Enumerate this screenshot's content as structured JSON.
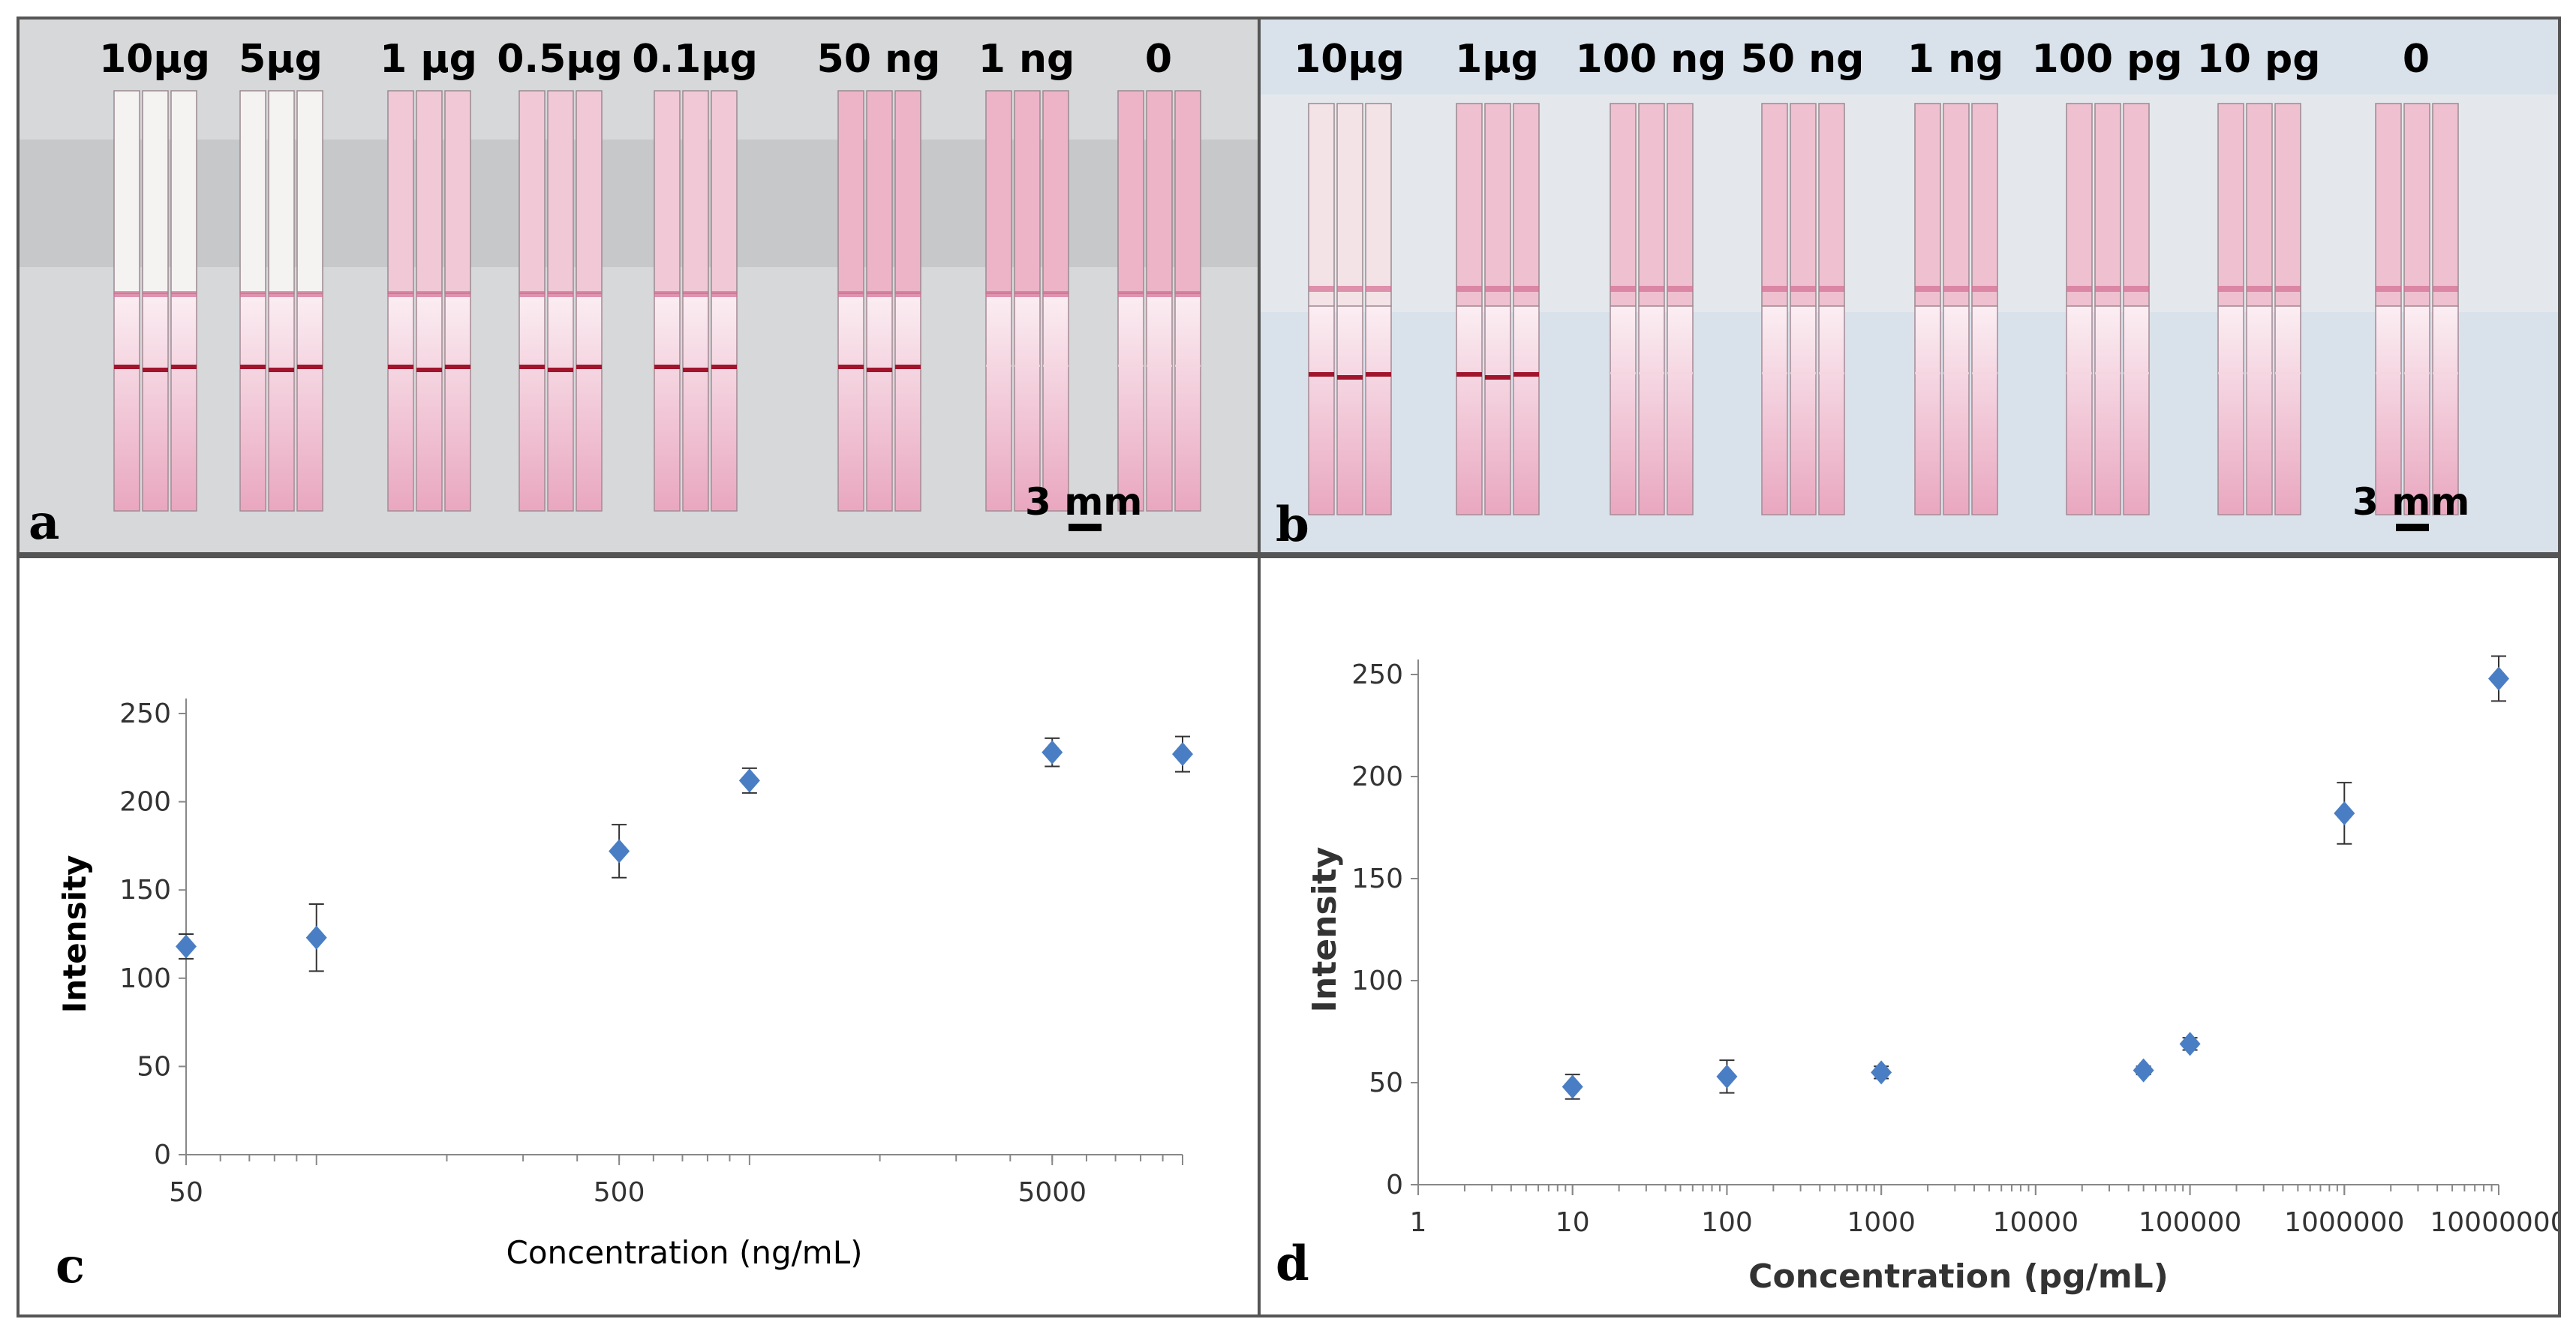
{
  "panel_a": {
    "label": "a",
    "scale_text": "3 mm",
    "concentrations": [
      "10µg",
      "5µg",
      "1 µg",
      "0.5µg",
      "0.1µg",
      "50 ng",
      "1 ng",
      "0"
    ],
    "test_line_visible": [
      true,
      true,
      true,
      true,
      true,
      true,
      false,
      false
    ]
  },
  "panel_b": {
    "label": "b",
    "scale_text": "3 mm",
    "concentrations": [
      "10µg",
      "1µg",
      "100 ng",
      "50 ng",
      "1 ng",
      "100 pg",
      "10 pg",
      "0"
    ],
    "test_line_visible": [
      true,
      true,
      false,
      false,
      false,
      false,
      false,
      false
    ]
  },
  "colors": {
    "strip_pink": "#e9a7bf",
    "test_line": "#a0142c",
    "marker": "#4a7ec4",
    "error_bar": "#333333",
    "axis": "#888888"
  },
  "chart_data": [
    {
      "panel": "c",
      "type": "scatter",
      "xscale": "log",
      "xlabel": "Concentration (ng/mL)",
      "ylabel": "Intensity",
      "xlim": [
        50,
        10000
      ],
      "ylim": [
        0,
        250
      ],
      "xticks": [
        50,
        500,
        5000
      ],
      "xticklabels": [
        "50",
        "500",
        "5000"
      ],
      "yticks": [
        0,
        50,
        100,
        150,
        200,
        250
      ],
      "yticklabels": [
        "0",
        "50",
        "100",
        "150",
        "200",
        "250"
      ],
      "x": [
        50,
        100,
        500,
        1000,
        5000,
        10000
      ],
      "y": [
        118,
        123,
        172,
        212,
        228,
        227
      ],
      "error": [
        7,
        19,
        15,
        7,
        8,
        10
      ]
    },
    {
      "panel": "d",
      "type": "scatter",
      "xscale": "log",
      "xlabel": "Concentration (pg/mL)",
      "ylabel": "Intensity",
      "xlim": [
        1,
        10000000
      ],
      "ylim": [
        0,
        250
      ],
      "xticks": [
        1,
        10,
        100,
        1000,
        10000,
        100000,
        1000000,
        10000000
      ],
      "xticklabels": [
        "1",
        "10",
        "100",
        "1000",
        "10000",
        "100000",
        "1000000",
        "10000000"
      ],
      "yticks": [
        0,
        50,
        100,
        150,
        200,
        250
      ],
      "yticklabels": [
        "0",
        "50",
        "100",
        "150",
        "200",
        "250"
      ],
      "x": [
        10,
        100,
        1000,
        50000,
        100000,
        1000000,
        10000000
      ],
      "y": [
        48,
        53,
        55,
        56,
        69,
        182,
        248
      ],
      "error": [
        6,
        8,
        3,
        2,
        3,
        15,
        11
      ]
    }
  ]
}
